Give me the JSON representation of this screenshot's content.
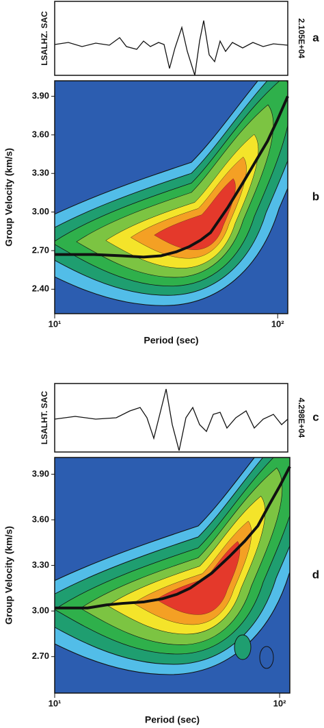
{
  "chart_data": [
    {
      "type": "trace",
      "label": "a",
      "name": "LSALHZ. SAC",
      "scale": "2.105E+04"
    },
    {
      "type": "line",
      "label": "b",
      "x_label": "Period (sec)",
      "y_label": "Group Velocity (km/s)",
      "log_x": true,
      "color": "#111111",
      "x": [
        10,
        15,
        20,
        25,
        30,
        35,
        40,
        45,
        50,
        60,
        70,
        80,
        90,
        100,
        111
      ],
      "values": [
        2.67,
        2.67,
        2.66,
        2.65,
        2.66,
        2.69,
        2.73,
        2.78,
        2.84,
        3.04,
        3.23,
        3.4,
        3.55,
        3.72,
        3.9
      ],
      "xlim": [
        10,
        111
      ],
      "ylim": [
        2.21,
        4.02
      ],
      "xticks": [
        {
          "value": 10,
          "label": "10¹"
        },
        {
          "value": 100,
          "label": "10²"
        }
      ],
      "yticks": [
        {
          "value": 2.4,
          "label": "2.40"
        },
        {
          "value": 2.7,
          "label": "2.70"
        },
        {
          "value": 3.0,
          "label": "3.00"
        },
        {
          "value": 3.3,
          "label": "3.30"
        },
        {
          "value": 3.6,
          "label": "3.60"
        },
        {
          "value": 3.9,
          "label": "3.90"
        }
      ]
    },
    {
      "type": "trace",
      "label": "c",
      "name": "LSALHT. SAC",
      "scale": "4.298E+04"
    },
    {
      "type": "line",
      "label": "d",
      "x_label": "Period (sec)",
      "y_label": "Group Velocity (km/s)",
      "log_x": true,
      "color": "#111111",
      "x": [
        10,
        14,
        17,
        20,
        25,
        30,
        35,
        40,
        50,
        60,
        70,
        80,
        90,
        100,
        111
      ],
      "values": [
        3.02,
        3.02,
        3.04,
        3.05,
        3.06,
        3.08,
        3.11,
        3.15,
        3.25,
        3.36,
        3.46,
        3.56,
        3.7,
        3.82,
        3.95
      ],
      "xlim": [
        10,
        111
      ],
      "ylim": [
        2.46,
        4.01
      ],
      "xticks": [
        {
          "value": 10,
          "label": "10¹"
        },
        {
          "value": 100,
          "label": "10²"
        }
      ],
      "yticks": [
        {
          "value": 2.7,
          "label": "2.70"
        },
        {
          "value": 3.0,
          "label": "3.00"
        },
        {
          "value": 3.3,
          "label": "3.30"
        },
        {
          "value": 3.6,
          "label": "3.60"
        },
        {
          "value": 3.9,
          "label": "3.90"
        }
      ]
    }
  ]
}
